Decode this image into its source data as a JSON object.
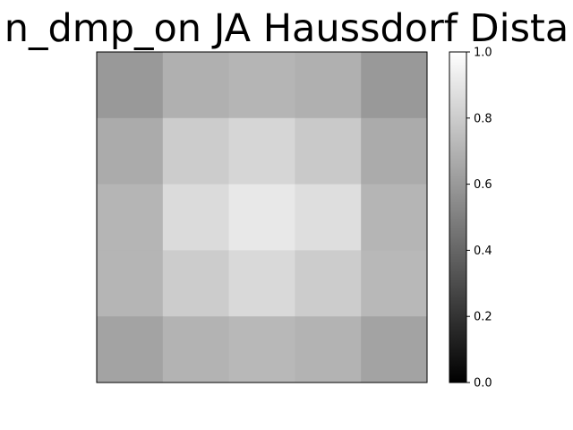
{
  "chart_data": {
    "type": "heatmap",
    "title": "n_dmp_on JA Haussdorf Dista",
    "xlabel": "",
    "ylabel": "",
    "rows": 5,
    "cols": 5,
    "values": [
      [
        0.6,
        0.69,
        0.71,
        0.69,
        0.6
      ],
      [
        0.67,
        0.8,
        0.84,
        0.79,
        0.67
      ],
      [
        0.71,
        0.86,
        0.91,
        0.87,
        0.71
      ],
      [
        0.71,
        0.8,
        0.85,
        0.8,
        0.72
      ],
      [
        0.64,
        0.7,
        0.72,
        0.7,
        0.64
      ]
    ],
    "colormap": "gray",
    "vmin": 0.0,
    "vmax": 1.0,
    "colorbar": {
      "ticks": [
        0.0,
        0.2,
        0.4,
        0.6,
        0.8,
        1.0
      ],
      "tick_labels": [
        "0.0",
        "0.2",
        "0.4",
        "0.6",
        "0.8",
        "1.0"
      ]
    },
    "axis_ticks_visible": false
  }
}
